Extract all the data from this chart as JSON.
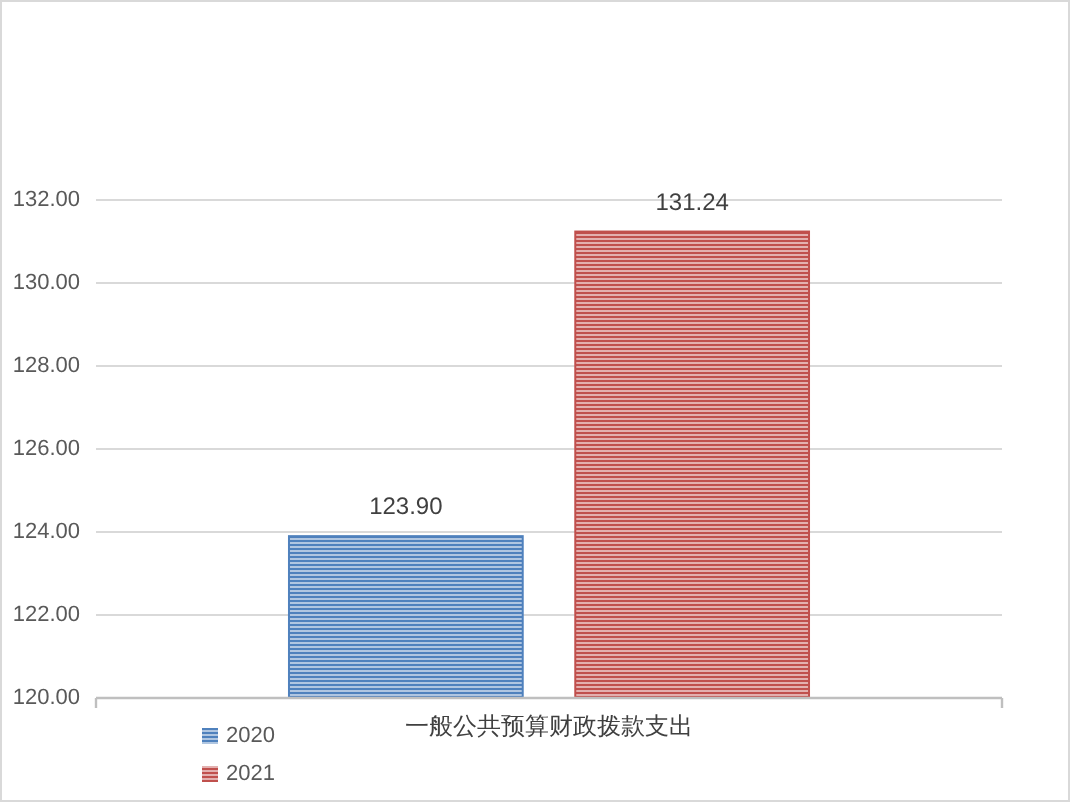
{
  "chart_data": {
    "type": "bar",
    "categories": [
      "一般公共预算财政拨款支出"
    ],
    "series": [
      {
        "name": "2020",
        "color": "#4f81bd",
        "values": [
          123.9
        ],
        "value_labels": [
          "123.90"
        ]
      },
      {
        "name": "2021",
        "color": "#c0504d",
        "values": [
          131.24
        ],
        "value_labels": [
          "131.24"
        ]
      }
    ],
    "ylim": [
      120,
      132
    ],
    "yticks": [
      {
        "value": 120,
        "label": "120.00"
      },
      {
        "value": 122,
        "label": "122.00"
      },
      {
        "value": 124,
        "label": "124.00"
      },
      {
        "value": 126,
        "label": "126.00"
      },
      {
        "value": 128,
        "label": "128.00"
      },
      {
        "value": 130,
        "label": "130.00"
      },
      {
        "value": 132,
        "label": "132.00"
      }
    ],
    "grid": "y",
    "legend": "bottom left"
  }
}
